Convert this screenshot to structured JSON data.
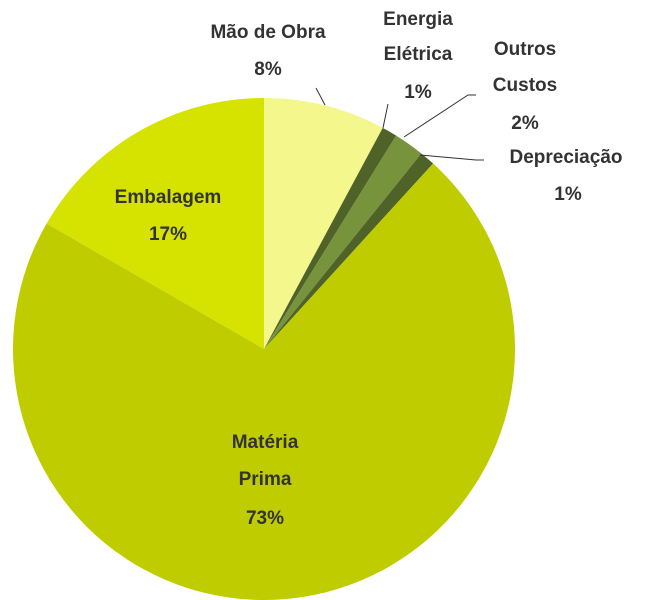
{
  "chart_data": {
    "type": "pie",
    "categories": [
      "Mão de Obra",
      "Energia Elétrica",
      "Outros Custos",
      "Depreciação",
      "Matéria Prima",
      "Embalagem"
    ],
    "values": [
      8,
      1,
      2,
      1,
      73,
      17
    ],
    "value_labels": [
      "8%",
      "1%",
      "2%",
      "1%",
      "73%",
      "17%"
    ],
    "colors": [
      "#f3f78c",
      "#4f6228",
      "#77933c",
      "#4f6228",
      "#bfcc00",
      "#d6e200"
    ]
  }
}
